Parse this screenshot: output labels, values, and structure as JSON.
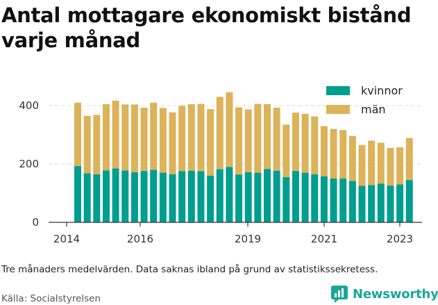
{
  "title": "Antal mottagare ekonomiskt bistånd varje månad",
  "note": "Tre månaders medelvärden. Data saknas ibland på grund av statistikssekretess.",
  "source": "Källa: Socialstyrelsen",
  "brand": {
    "label": "Newsworthy",
    "icon": "newsworthy-logo-icon",
    "color": "#17a89c"
  },
  "chart_data": {
    "type": "bar",
    "stacked": true,
    "xlabel": "",
    "ylabel": "",
    "ylim": [
      0,
      460
    ],
    "yticks": [
      0,
      200,
      400
    ],
    "xticks": [
      "2014",
      "2016",
      "2019",
      "2021",
      "2023"
    ],
    "legend": "top-right",
    "grid": true,
    "series": [
      {
        "name": "kvinnor",
        "color": "#009e8e",
        "values": [
          193,
          168,
          165,
          178,
          185,
          178,
          172,
          176,
          180,
          170,
          165,
          175,
          177,
          175,
          160,
          182,
          190,
          164,
          172,
          170,
          183,
          177,
          155,
          176,
          170,
          165,
          158,
          150,
          150,
          142,
          125,
          128,
          133,
          126,
          130,
          145
        ]
      },
      {
        "name": "män",
        "color": "#dcb35a",
        "values": [
          217,
          197,
          203,
          227,
          232,
          226,
          232,
          217,
          230,
          222,
          212,
          224,
          228,
          231,
          228,
          248,
          256,
          230,
          215,
          236,
          222,
          216,
          180,
          200,
          202,
          198,
          172,
          170,
          166,
          154,
          140,
          152,
          140,
          129,
          127,
          144
        ]
      }
    ]
  }
}
